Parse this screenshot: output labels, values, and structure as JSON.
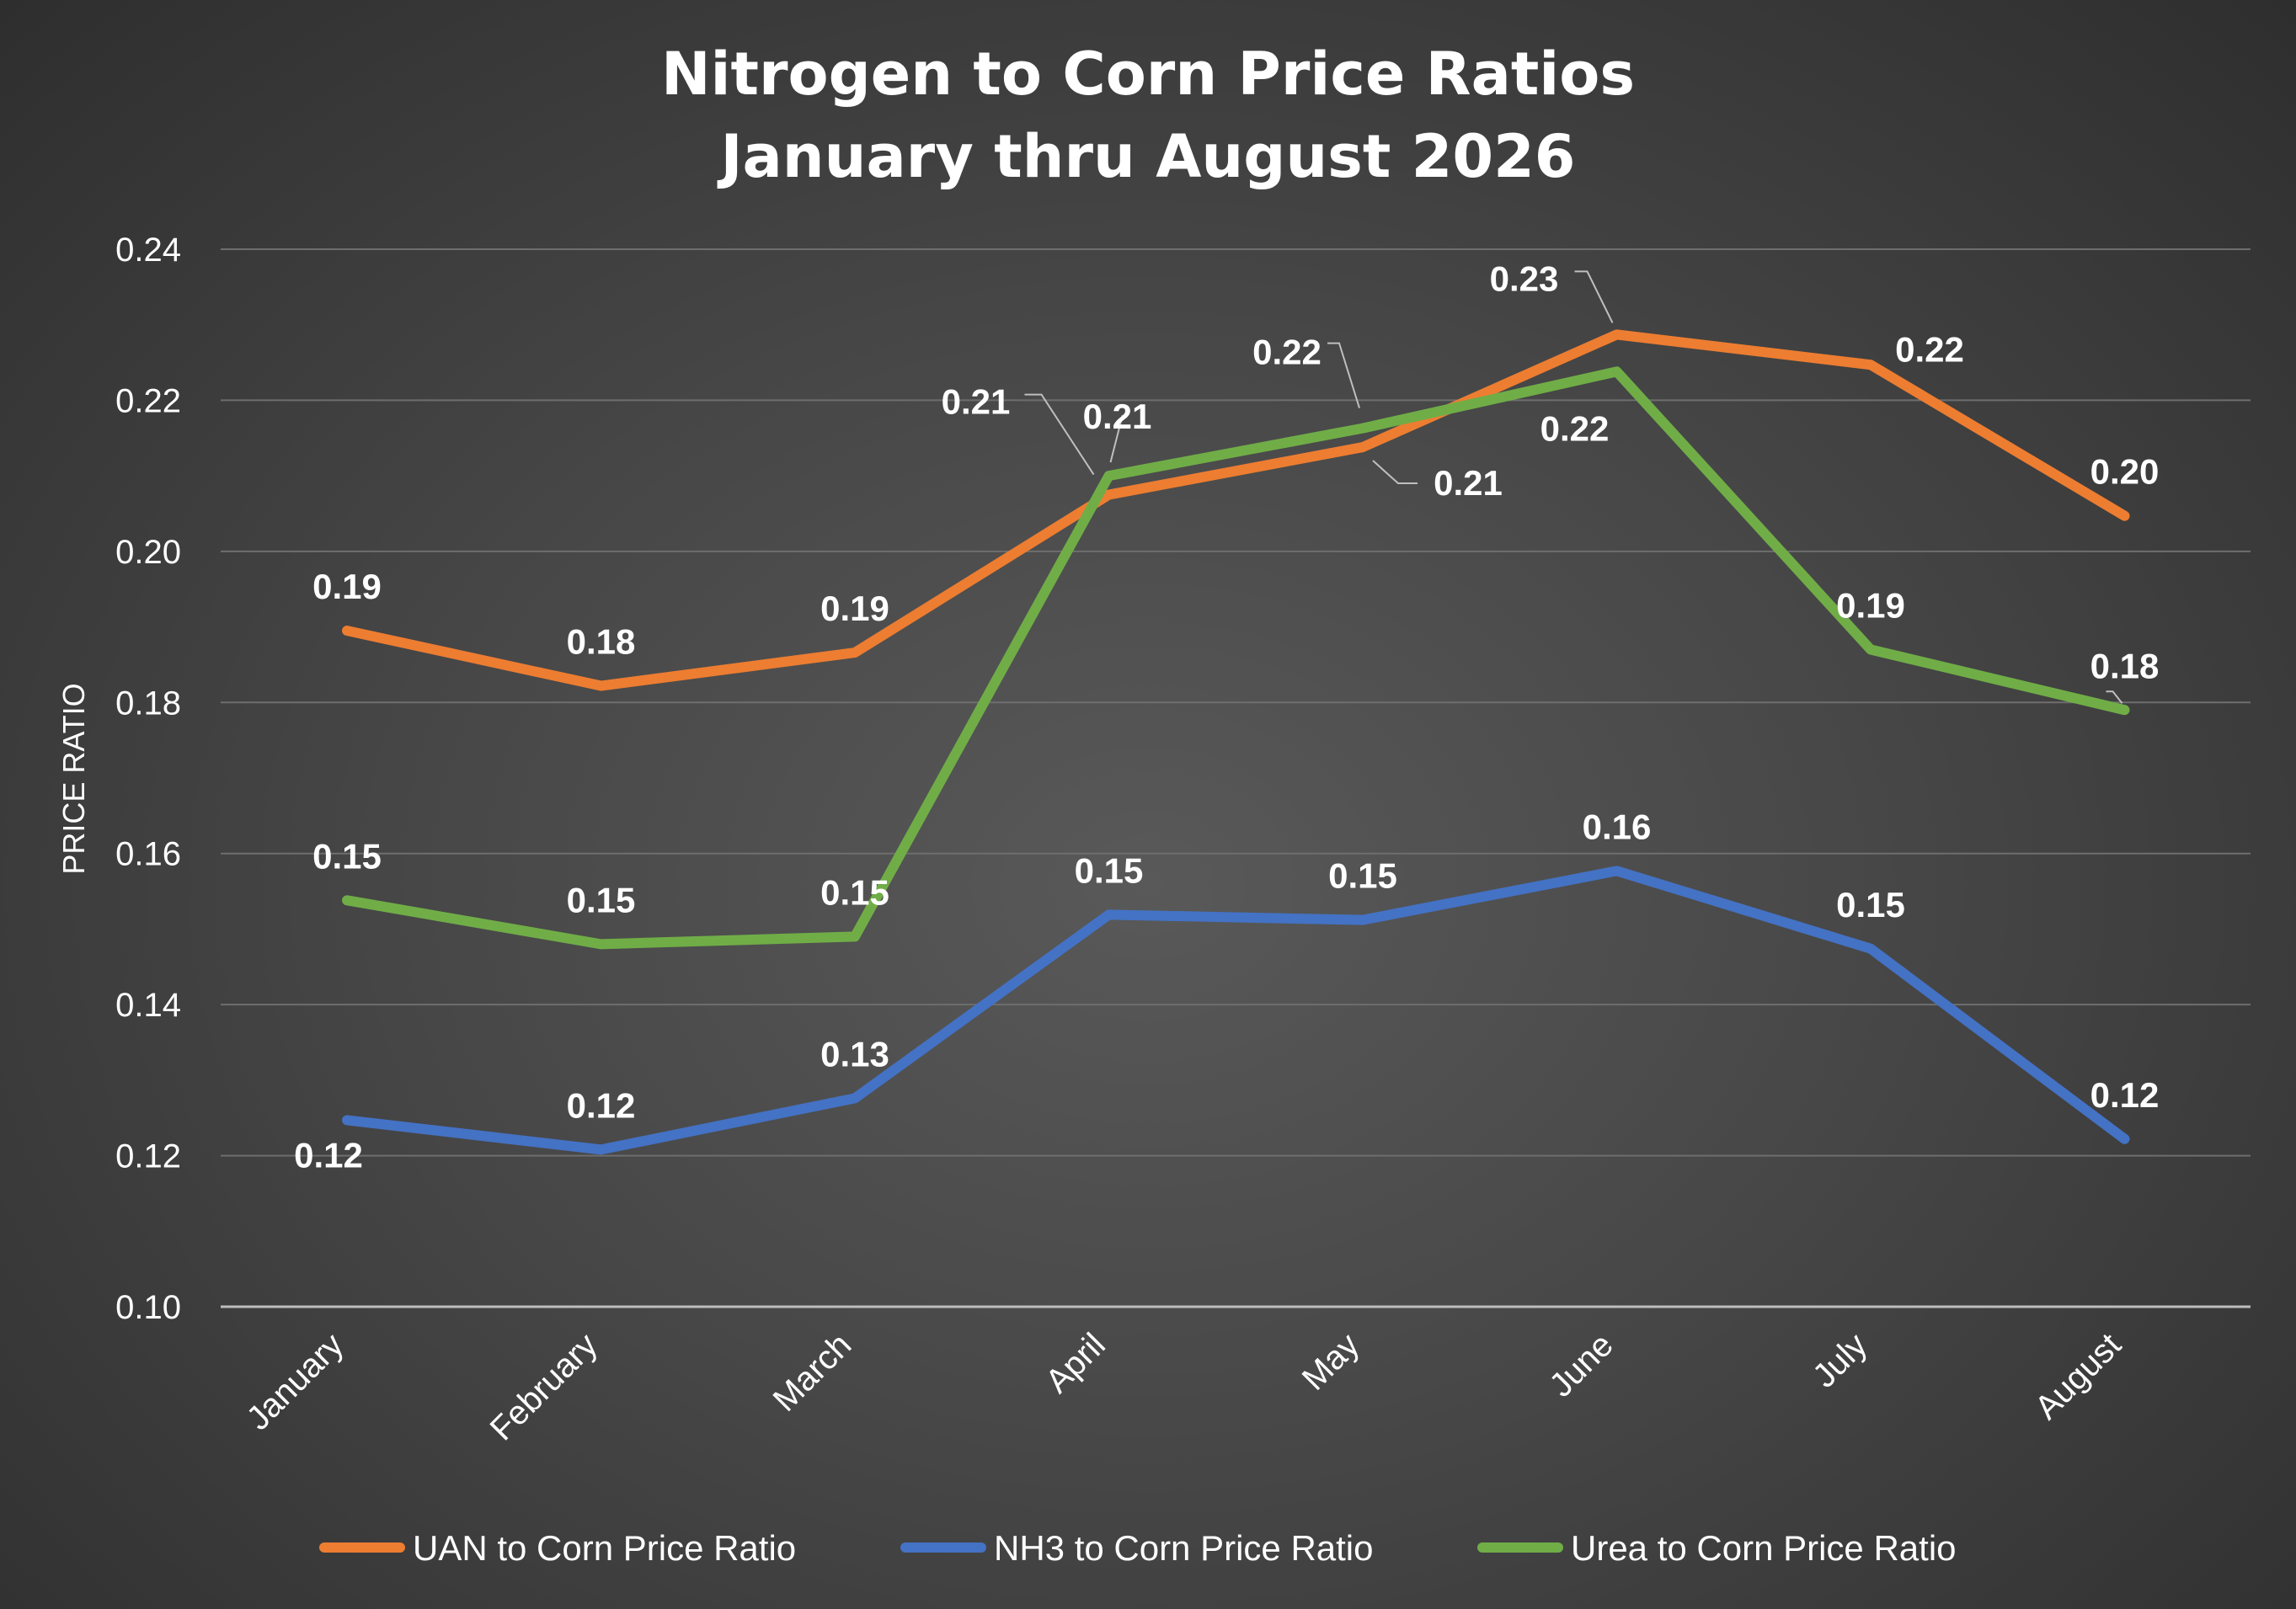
{
  "chart_data": {
    "type": "line",
    "title_lines": [
      "Nitrogen to Corn Price Ratios",
      "January thru August 2026"
    ],
    "ylabel": "PRICE RATIO",
    "xlabel": "",
    "ylim": [
      0.1,
      0.24
    ],
    "ytick_values": [
      0.1,
      0.12,
      0.14,
      0.16,
      0.18,
      0.2,
      0.22,
      0.24
    ],
    "ytick_labels": [
      "0.10",
      "0.12",
      "0.14",
      "0.16",
      "0.18",
      "0.20",
      "0.22",
      "0.24"
    ],
    "grid": true,
    "legend_position": "bottom",
    "categories": [
      "January",
      "February",
      "March",
      "April",
      "May",
      "June",
      "July",
      "August"
    ],
    "series": [
      {
        "name": "UAN to Corn Price Ratio",
        "color": "#ed7d31",
        "values": [
          0.1895,
          0.1822,
          0.1866,
          0.2075,
          0.2138,
          0.2287,
          0.2247,
          0.2047
        ],
        "labels": [
          "0.19",
          "0.18",
          "0.19",
          "0.21",
          "0.21",
          "0.23",
          "0.22",
          "0.20"
        ]
      },
      {
        "name": "NH3 to Corn Price Ratio",
        "color": "#4472c4",
        "values": [
          0.1247,
          0.1208,
          0.1276,
          0.1519,
          0.1512,
          0.1577,
          0.1474,
          0.1222
        ],
        "labels": [
          "0.12",
          "0.12",
          "0.13",
          "0.15",
          "0.15",
          "0.16",
          "0.15",
          "0.12"
        ]
      },
      {
        "name": "Urea to Corn Price Ratio",
        "color": "#70ad47",
        "values": [
          0.1538,
          0.148,
          0.149,
          0.21,
          0.2163,
          0.2238,
          0.187,
          0.179
        ],
        "labels": [
          "0.15",
          "0.15",
          "0.15",
          "0.21",
          "0.22",
          "0.22",
          "0.19",
          "0.18"
        ]
      }
    ]
  }
}
